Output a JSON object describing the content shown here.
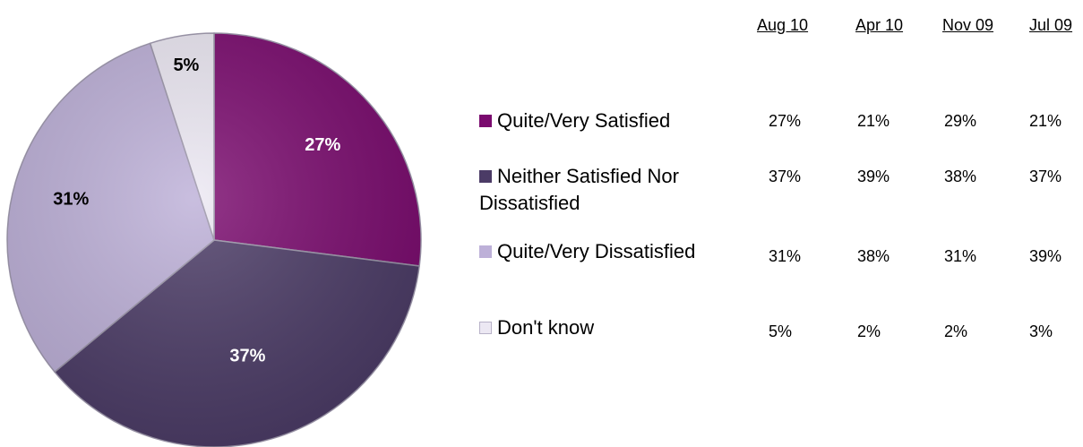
{
  "chart_data": {
    "type": "pie",
    "slices": [
      {
        "label": "Quite/Very Satisfied",
        "value": 27,
        "display": "27%",
        "color": "#7a0a6e"
      },
      {
        "label": "Neither Satisfied Nor Dissatisfied",
        "value": 37,
        "display": "37%",
        "color": "#4b3b66"
      },
      {
        "label": "Quite/Very Dissatisfied",
        "value": 31,
        "display": "31%",
        "color": "#bdb0d8"
      },
      {
        "label": "Don't know",
        "value": 5,
        "display": "5%",
        "color": "#ece8f3"
      }
    ],
    "table": {
      "columns": [
        "Aug 10",
        "Apr 10",
        "Nov 09",
        "Jul 09"
      ],
      "rows": [
        {
          "label": "Quite/Very Satisfied",
          "values": [
            "27%",
            "21%",
            "29%",
            "21%"
          ]
        },
        {
          "label": "Neither Satisfied Nor Dissatisfied",
          "values": [
            "37%",
            "39%",
            "38%",
            "37%"
          ]
        },
        {
          "label": "Quite/Very Dissatisfied",
          "values": [
            "31%",
            "38%",
            "31%",
            "39%"
          ]
        },
        {
          "label": "Don't know",
          "values": [
            "5%",
            "2%",
            "2%",
            "3%"
          ]
        }
      ]
    },
    "legend_position": "right"
  }
}
